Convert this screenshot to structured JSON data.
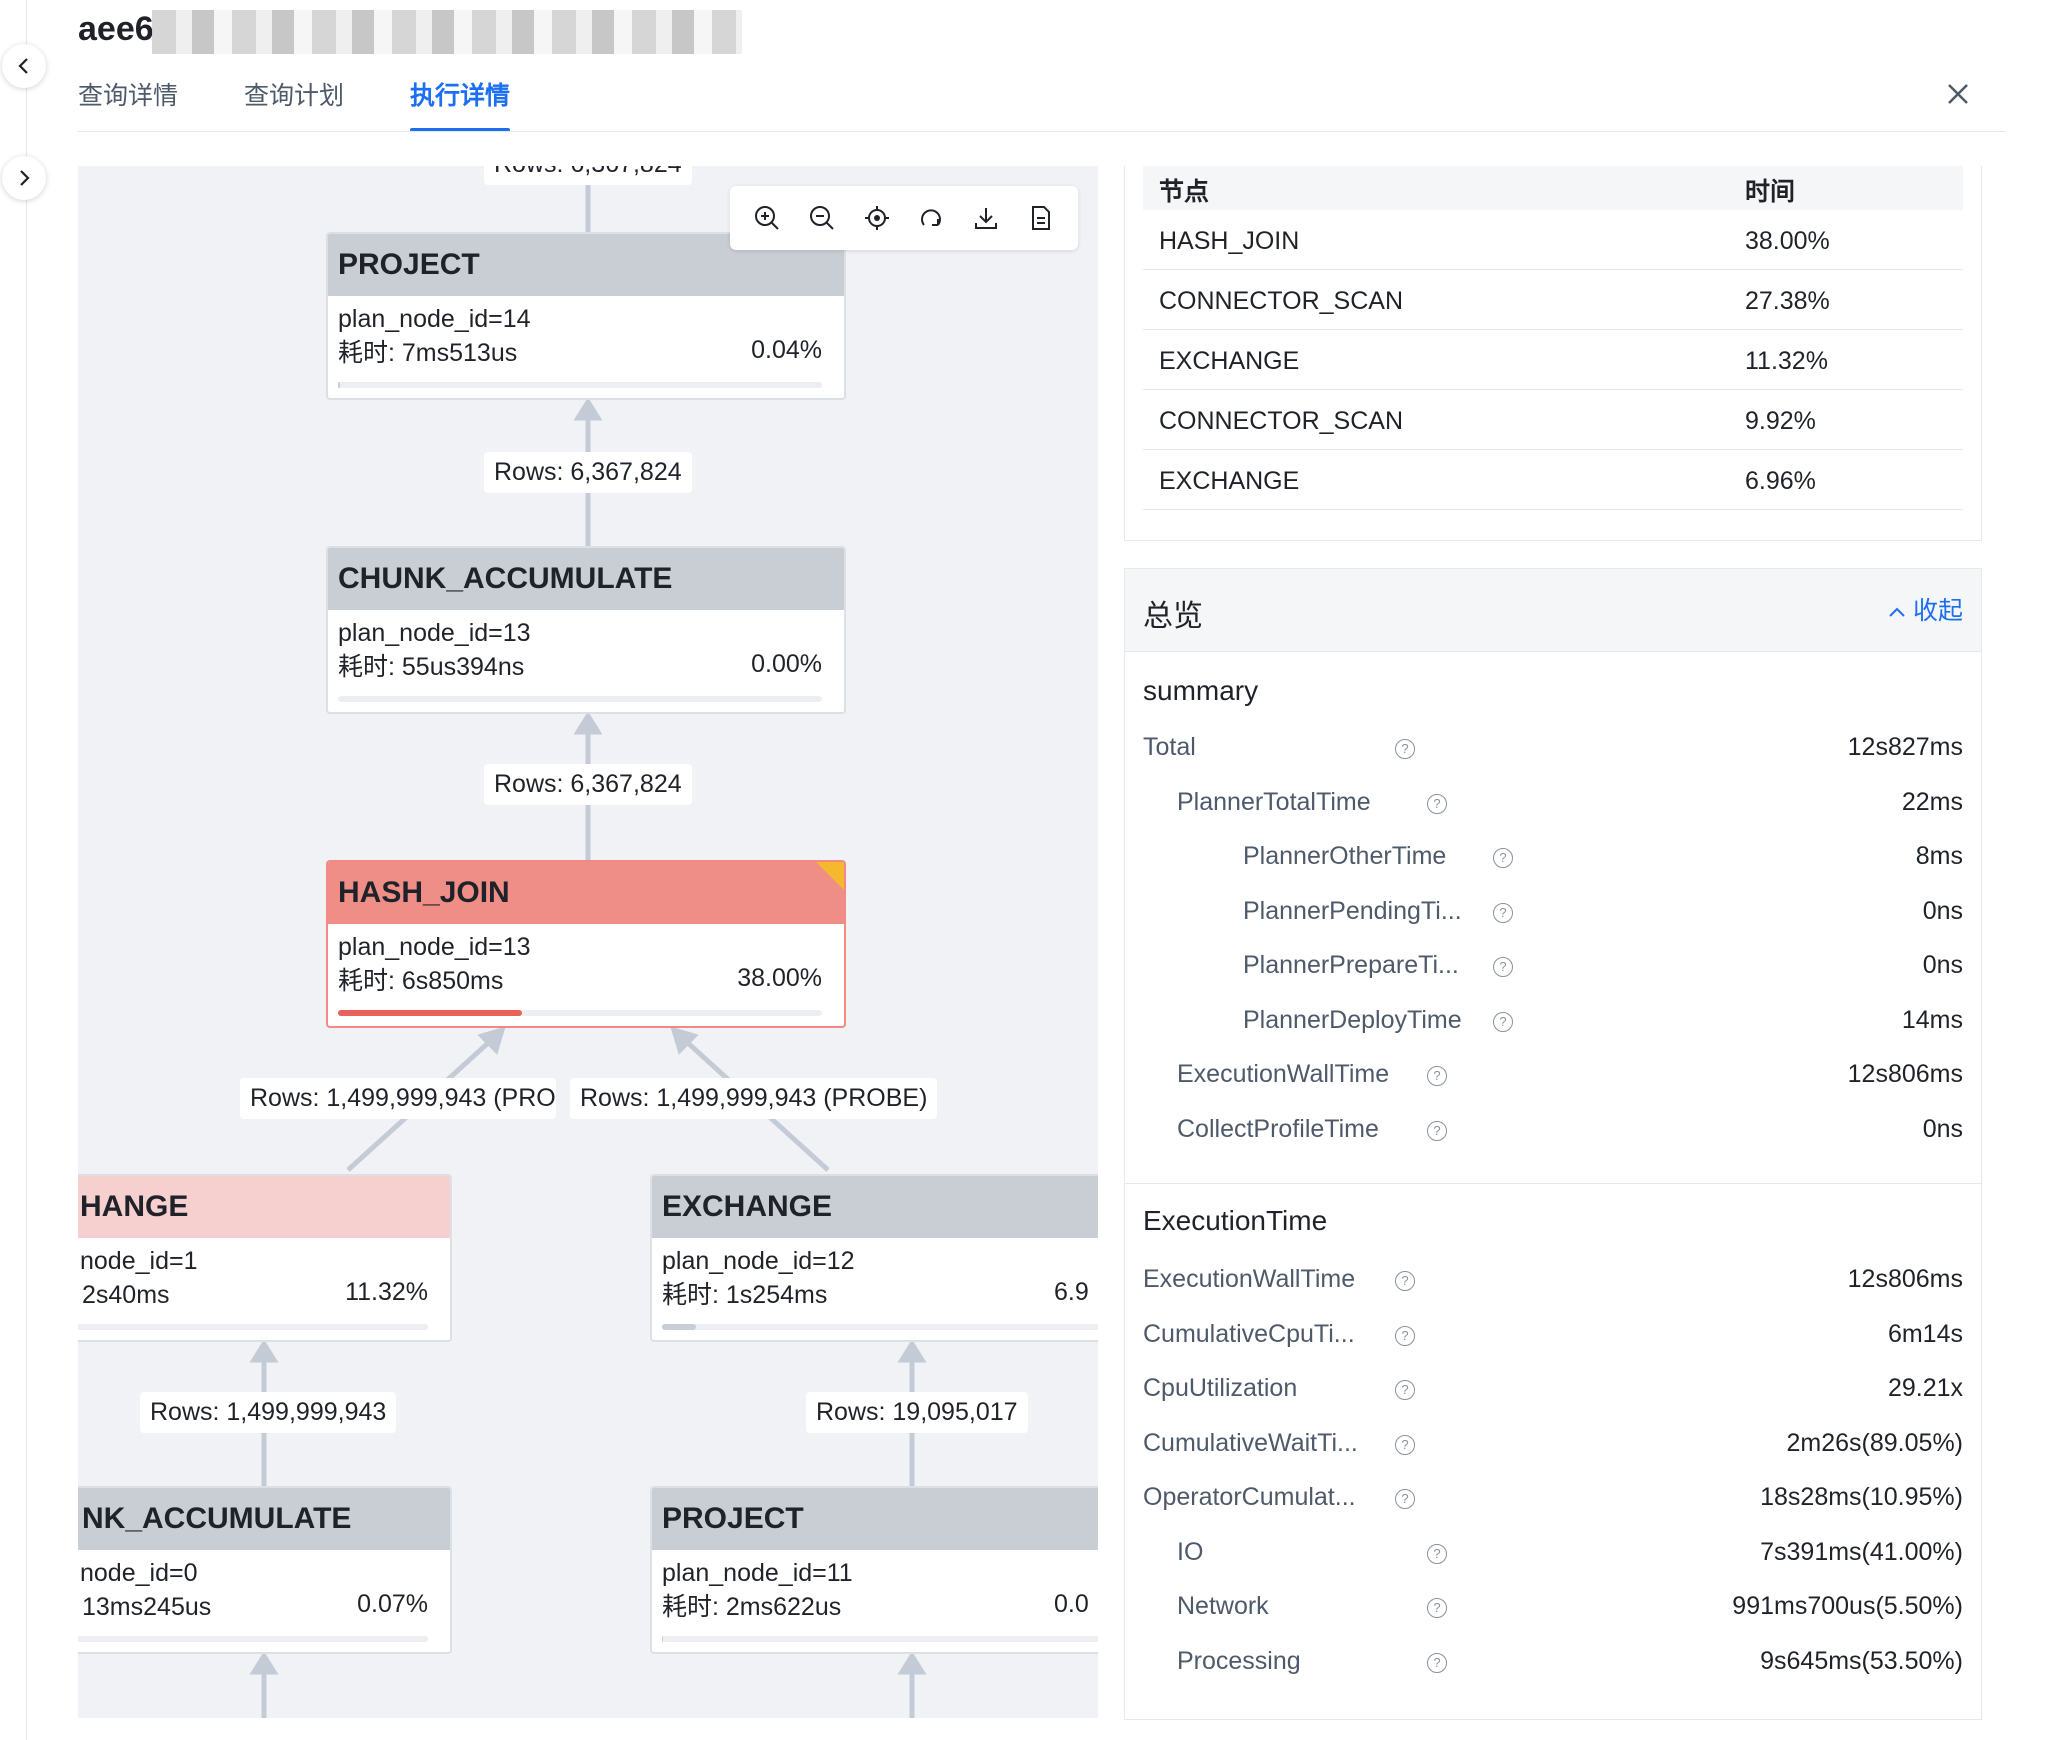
{
  "header": {
    "title": "aee6",
    "tabs": [
      "查询详情",
      "查询计划",
      "执行详情"
    ],
    "active_tab": 2
  },
  "graph": {
    "top_rows_partial": "Rows: 6,367,824",
    "nodes": [
      {
        "id": "project-top",
        "name": "PROJECT",
        "plan": "plan_node_id=14",
        "time": "耗时: 7ms513us",
        "pct": "0.04%",
        "fill": 0.004
      },
      {
        "id": "chunk-acc",
        "name": "CHUNK_ACCUMULATE",
        "plan": "plan_node_id=13",
        "time": "耗时: 55us394ns",
        "pct": "0.00%",
        "fill": 0.0
      },
      {
        "id": "hash-join",
        "name": "HASH_JOIN",
        "plan": "plan_node_id=13",
        "time": "耗时: 6s850ms",
        "pct": "38.00%",
        "fill": 0.38
      },
      {
        "id": "exchange-left",
        "name": "HANGE",
        "plan": "node_id=1",
        "time": "2s40ms",
        "pct": "11.32%",
        "fill": 0.1132
      },
      {
        "id": "exchange-right",
        "name": "EXCHANGE",
        "plan": "plan_node_id=12",
        "time": "耗时: 1s254ms",
        "pct": "6.9",
        "fill": 0.0696
      },
      {
        "id": "chunk-acc-left",
        "name": "NK_ACCUMULATE",
        "plan": "node_id=0",
        "time": "13ms245us",
        "pct": "0.07%",
        "fill": 0.0007
      },
      {
        "id": "project-right",
        "name": "PROJECT",
        "plan": "plan_node_id=11",
        "time": "耗时: 2ms622us",
        "pct": "0.0",
        "fill": 0.001
      }
    ],
    "edge_labels": [
      "Rows: 6,367,824",
      "Rows: 6,367,824",
      "Rows: 1,499,999,943 (PRO",
      "Rows: 1,499,999,943 (PROBE)",
      "Rows: 1,499,999,943",
      "Rows: 19,095,017"
    ],
    "toolbar": [
      "zoom-in-icon",
      "zoom-out-icon",
      "locate-icon",
      "reset-icon",
      "download-icon",
      "file-icon"
    ]
  },
  "top_nodes": {
    "headers": [
      "节点",
      "时间"
    ],
    "rows": [
      [
        "HASH_JOIN",
        "38.00%"
      ],
      [
        "CONNECTOR_SCAN",
        "27.38%"
      ],
      [
        "EXCHANGE",
        "11.32%"
      ],
      [
        "CONNECTOR_SCAN",
        "9.92%"
      ],
      [
        "EXCHANGE",
        "6.96%"
      ]
    ]
  },
  "overview": {
    "title": "总览",
    "collapse": "收起",
    "summary_title": "summary",
    "summary": [
      {
        "k": "Total",
        "v": "12s827ms",
        "lvl": 0
      },
      {
        "k": "PlannerTotalTime",
        "v": "22ms",
        "lvl": 1
      },
      {
        "k": "PlannerOtherTime",
        "v": "8ms",
        "lvl": 2
      },
      {
        "k": "PlannerPendingTi...",
        "v": "0ns",
        "lvl": 2
      },
      {
        "k": "PlannerPrepareTi...",
        "v": "0ns",
        "lvl": 2
      },
      {
        "k": "PlannerDeployTime",
        "v": "14ms",
        "lvl": 2
      },
      {
        "k": "ExecutionWallTime",
        "v": "12s806ms",
        "lvl": 1
      },
      {
        "k": "CollectProfileTime",
        "v": "0ns",
        "lvl": 1
      }
    ],
    "exec_title": "ExecutionTime",
    "exec": [
      {
        "k": "ExecutionWallTime",
        "v": "12s806ms",
        "lvl": 0
      },
      {
        "k": "CumulativeCpuTi...",
        "v": "6m14s",
        "lvl": 0
      },
      {
        "k": "CpuUtilization",
        "v": "29.21x",
        "lvl": 0
      },
      {
        "k": "CumulativeWaitTi...",
        "v": "2m26s(89.05%)",
        "lvl": 0
      },
      {
        "k": "OperatorCumulat...",
        "v": "18s28ms(10.95%)",
        "lvl": 0
      },
      {
        "k": "IO",
        "v": "7s391ms(41.00%)",
        "lvl": 1
      },
      {
        "k": "Network",
        "v": "991ms700us(5.50%)",
        "lvl": 1
      },
      {
        "k": "Processing",
        "v": "9s645ms(53.50%)",
        "lvl": 1
      }
    ]
  }
}
